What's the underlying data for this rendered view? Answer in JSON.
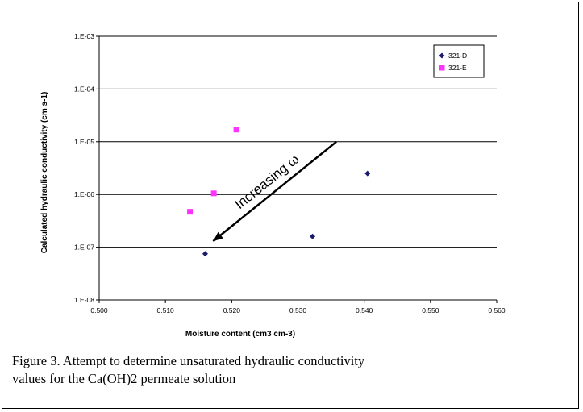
{
  "caption": {
    "line1": "Figure 3.  Attempt to determine unsaturated hydraulic conductivity",
    "line2": "values for the Ca(OH)2 permeate solution"
  },
  "chart_data": {
    "type": "scatter",
    "xlabel": "Moisture content (cm3 cm-3)",
    "ylabel": "Calculated hydraulic conductivity (cm s-1)",
    "xlim": [
      0.5,
      0.56
    ],
    "ylim": [
      1e-08,
      0.001
    ],
    "y_scale": "log",
    "x_ticks": [
      "0.500",
      "0.510",
      "0.520",
      "0.530",
      "0.540",
      "0.550",
      "0.560"
    ],
    "y_ticks": [
      "1.E-08",
      "1.E-07",
      "1.E-06",
      "1.E-05",
      "1.E-04",
      "1.E-03"
    ],
    "grid": "horizontal",
    "legend": "top-right",
    "series": [
      {
        "name": "321-D",
        "marker": "diamond",
        "color": "#1a1a6e",
        "points": [
          {
            "x": 0.516,
            "y": 7.5e-08
          },
          {
            "x": 0.5322,
            "y": 1.6e-07
          },
          {
            "x": 0.5405,
            "y": 2.5e-06
          }
        ]
      },
      {
        "name": "321-E",
        "marker": "square",
        "color": "#ff33ff",
        "points": [
          {
            "x": 0.5137,
            "y": 4.7e-07
          },
          {
            "x": 0.5173,
            "y": 1.05e-06
          },
          {
            "x": 0.5207,
            "y": 1.7e-05
          }
        ]
      }
    ],
    "annotation": {
      "text": "Increasing ω",
      "start": {
        "x": 0.5358,
        "y": 1e-05
      },
      "end": {
        "x": 0.5172,
        "y": 1.3e-07
      }
    }
  }
}
